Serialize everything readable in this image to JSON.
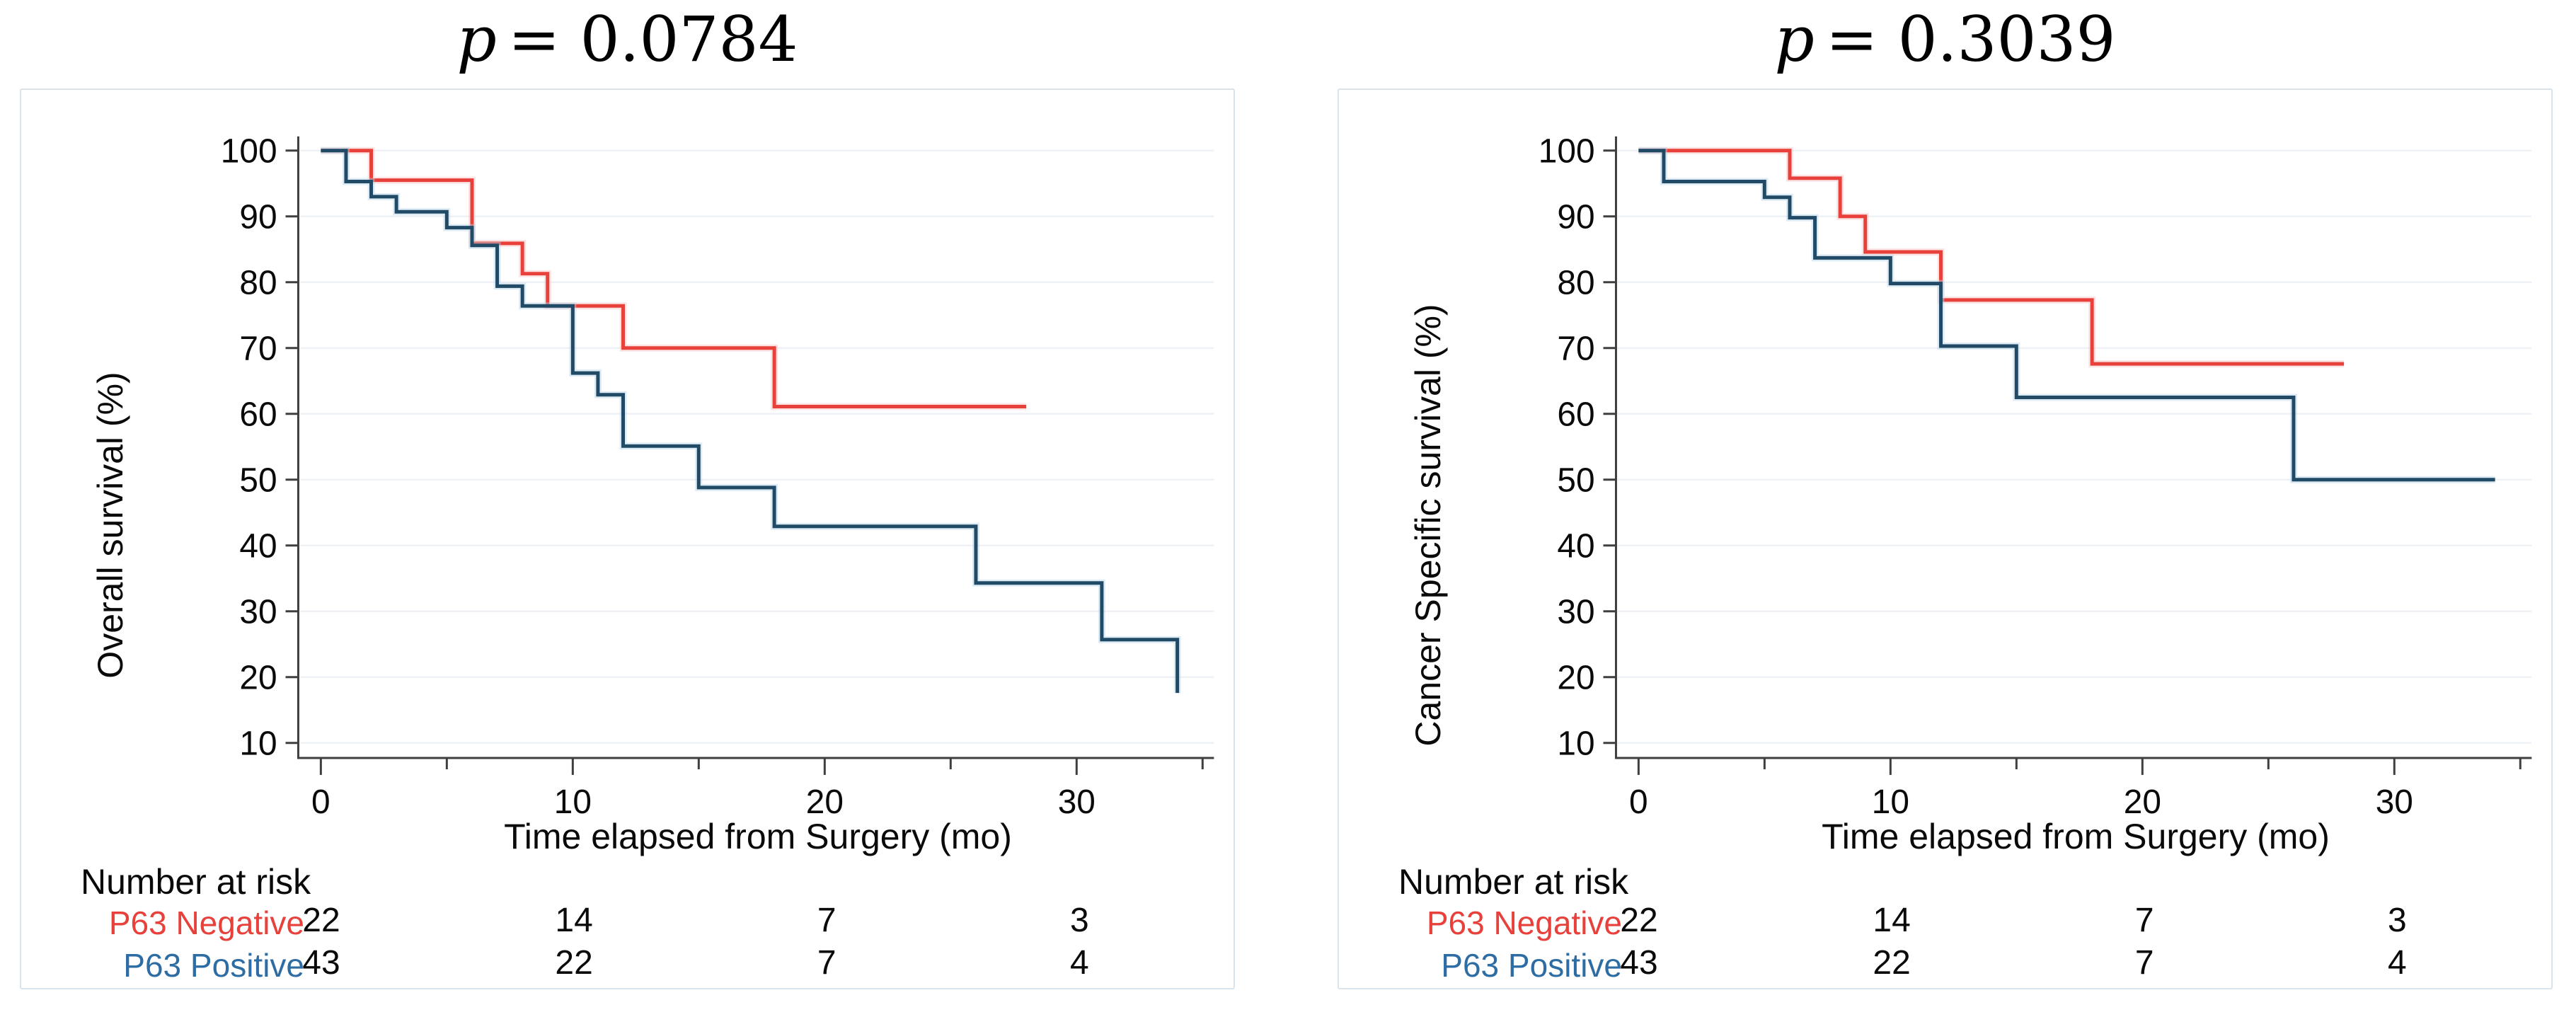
{
  "figure": {
    "background": "#ffffff",
    "accent_red": "#e8403a",
    "accent_blue": "#214a66",
    "grid_color": "#eef2f6",
    "axis_color": "#3f3f3f",
    "panel_border": "#d9e3eb"
  },
  "chart_data": [
    {
      "type": "line",
      "subtype": "kaplan-meier-step",
      "title_p": "p",
      "title_rest": "= 0.0784",
      "ylabel": "Overall survival (%)",
      "xlabel": "Time elapsed from Surgery (mo)",
      "xlim": [
        0,
        35.5
      ],
      "ylim": [
        7,
        102
      ],
      "grid": "horizontal",
      "legend_position": "none",
      "x_major_ticks": [
        0,
        10,
        20,
        30
      ],
      "x_minor_ticks": [
        5,
        15,
        25,
        35
      ],
      "y_ticks": [
        100,
        90,
        80,
        70,
        60,
        50,
        40,
        30,
        20,
        10
      ],
      "series": [
        {
          "name": "P63 Negative",
          "color": "#e8403a",
          "glow": "#f6c3c0",
          "step": "post",
          "end": 28,
          "points": [
            [
              0,
              100
            ],
            [
              2,
              95.5
            ],
            [
              6,
              85.9
            ],
            [
              8,
              81.3
            ],
            [
              9,
              76.4
            ],
            [
              12,
              70.0
            ],
            [
              18,
              61.1
            ]
          ]
        },
        {
          "name": "P63 Positive",
          "color": "#214a66",
          "glow": "#b3d2e6",
          "step": "post",
          "end": 34,
          "points": [
            [
              0,
              100
            ],
            [
              1,
              95.3
            ],
            [
              2,
              93.0
            ],
            [
              3,
              90.7
            ],
            [
              5,
              88.3
            ],
            [
              6,
              85.6
            ],
            [
              7,
              79.4
            ],
            [
              8,
              76.4
            ],
            [
              10,
              66.2
            ],
            [
              11,
              62.9
            ],
            [
              12,
              55.1
            ],
            [
              15,
              48.8
            ],
            [
              18,
              42.9
            ],
            [
              26,
              34.3
            ],
            [
              31,
              25.7
            ],
            [
              34,
              17.6
            ]
          ]
        }
      ],
      "risk_table": {
        "header": "Number at risk",
        "times": [
          0,
          10,
          20,
          30
        ],
        "rows": [
          {
            "label": "P63 Negative",
            "color": "#e8403a",
            "values": [
              "22",
              "14",
              "7",
              "3"
            ]
          },
          {
            "label": "P63 Positive",
            "color": "#2e6da4",
            "values": [
              "43",
              "22",
              "7",
              "4"
            ]
          }
        ]
      }
    },
    {
      "type": "line",
      "subtype": "kaplan-meier-step",
      "title_p": "p",
      "title_rest": "= 0.3039",
      "ylabel": "Cancer Specific survival (%)",
      "xlabel": "Time elapsed from Surgery (mo)",
      "xlim": [
        0,
        35.5
      ],
      "ylim": [
        7,
        102
      ],
      "grid": "horizontal",
      "legend_position": "none",
      "x_major_ticks": [
        0,
        10,
        20,
        30
      ],
      "x_minor_ticks": [
        5,
        15,
        25,
        35
      ],
      "y_ticks": [
        100,
        90,
        80,
        70,
        60,
        50,
        40,
        30,
        20,
        10
      ],
      "series": [
        {
          "name": "P63 Negative",
          "color": "#e8403a",
          "glow": "#f6c3c0",
          "step": "post",
          "end": 28,
          "points": [
            [
              0,
              100
            ],
            [
              6,
              95.8
            ],
            [
              8,
              90.0
            ],
            [
              9,
              84.6
            ],
            [
              12,
              77.3
            ],
            [
              18,
              67.6
            ]
          ]
        },
        {
          "name": "P63 Positive",
          "color": "#214a66",
          "glow": "#b3d2e6",
          "step": "post",
          "end": 34,
          "points": [
            [
              0,
              100
            ],
            [
              1,
              95.3
            ],
            [
              5,
              92.9
            ],
            [
              6,
              89.8
            ],
            [
              7,
              83.7
            ],
            [
              10,
              79.8
            ],
            [
              12,
              70.3
            ],
            [
              15,
              62.5
            ],
            [
              26,
              50.0
            ]
          ]
        }
      ],
      "risk_table": {
        "header": "Number at risk",
        "times": [
          0,
          10,
          20,
          30
        ],
        "rows": [
          {
            "label": "P63 Negative",
            "color": "#e8403a",
            "values": [
              "22",
              "14",
              "7",
              "3"
            ]
          },
          {
            "label": "P63 Positive",
            "color": "#2e6da4",
            "values": [
              "43",
              "22",
              "7",
              "4"
            ]
          }
        ]
      }
    }
  ]
}
